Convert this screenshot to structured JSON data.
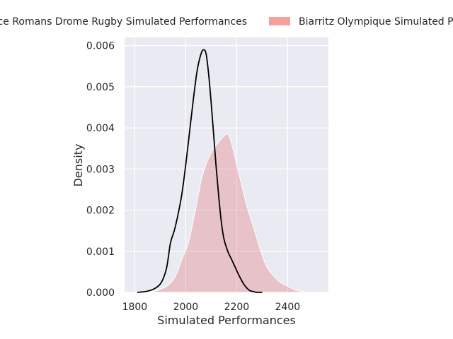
{
  "chart_data": {
    "type": "area",
    "xlabel": "Simulated Performances",
    "ylabel": "Density",
    "xlim": [
      1760,
      2560
    ],
    "ylim": [
      0,
      0.0062
    ],
    "x_ticks": [
      1800,
      2000,
      2200,
      2400
    ],
    "x_tick_labels": [
      "1800",
      "2000",
      "2200",
      "2400"
    ],
    "y_ticks": [
      0,
      0.001,
      0.002,
      0.003,
      0.004,
      0.005,
      0.006
    ],
    "y_tick_labels": [
      "0.000",
      "0.001",
      "0.002",
      "0.003",
      "0.004",
      "0.005",
      "0.006"
    ],
    "grid": true,
    "legend_position": "top, above plot",
    "series": [
      {
        "name": "Valence Romans Drome Rugby Simulated Performances",
        "style": "line",
        "color": "#000000",
        "x": [
          1810,
          1850,
          1880,
          1905,
          1925,
          1940,
          1955,
          1970,
          1985,
          2000,
          2015,
          2030,
          2045,
          2060,
          2070,
          2080,
          2090,
          2100,
          2110,
          2120,
          2130,
          2140,
          2150,
          2165,
          2180,
          2195,
          2210,
          2230,
          2250,
          2265,
          2280,
          2300
        ],
        "y": [
          0.0,
          3e-05,
          0.0001,
          0.00025,
          0.0006,
          0.0012,
          0.0015,
          0.0019,
          0.0024,
          0.0031,
          0.0039,
          0.0047,
          0.0054,
          0.0058,
          0.0059,
          0.0058,
          0.0053,
          0.0046,
          0.0038,
          0.003,
          0.0023,
          0.0017,
          0.0013,
          0.001,
          0.0008,
          0.0006,
          0.0004,
          0.00018,
          5e-05,
          2e-05,
          0.0,
          0.0
        ]
      },
      {
        "name": "Biarritz Olympique Simulated Performances",
        "style": "area",
        "color": "#f4a09c",
        "x": [
          1850,
          1880,
          1910,
          1935,
          1960,
          1985,
          2010,
          2035,
          2060,
          2085,
          2110,
          2135,
          2150,
          2160,
          2170,
          2185,
          2200,
          2220,
          2240,
          2260,
          2280,
          2300,
          2320,
          2345,
          2370,
          2400,
          2430,
          2460,
          2490,
          2520
        ],
        "y": [
          0.0,
          3e-05,
          0.0001,
          0.0002,
          0.0004,
          0.0008,
          0.0012,
          0.0019,
          0.0027,
          0.0032,
          0.0035,
          0.0037,
          0.0038,
          0.00385,
          0.0038,
          0.0035,
          0.0031,
          0.0026,
          0.0021,
          0.0017,
          0.0013,
          0.0009,
          0.0006,
          0.0004,
          0.00025,
          0.00015,
          6e-05,
          2e-05,
          0.0,
          0.0
        ]
      }
    ]
  }
}
